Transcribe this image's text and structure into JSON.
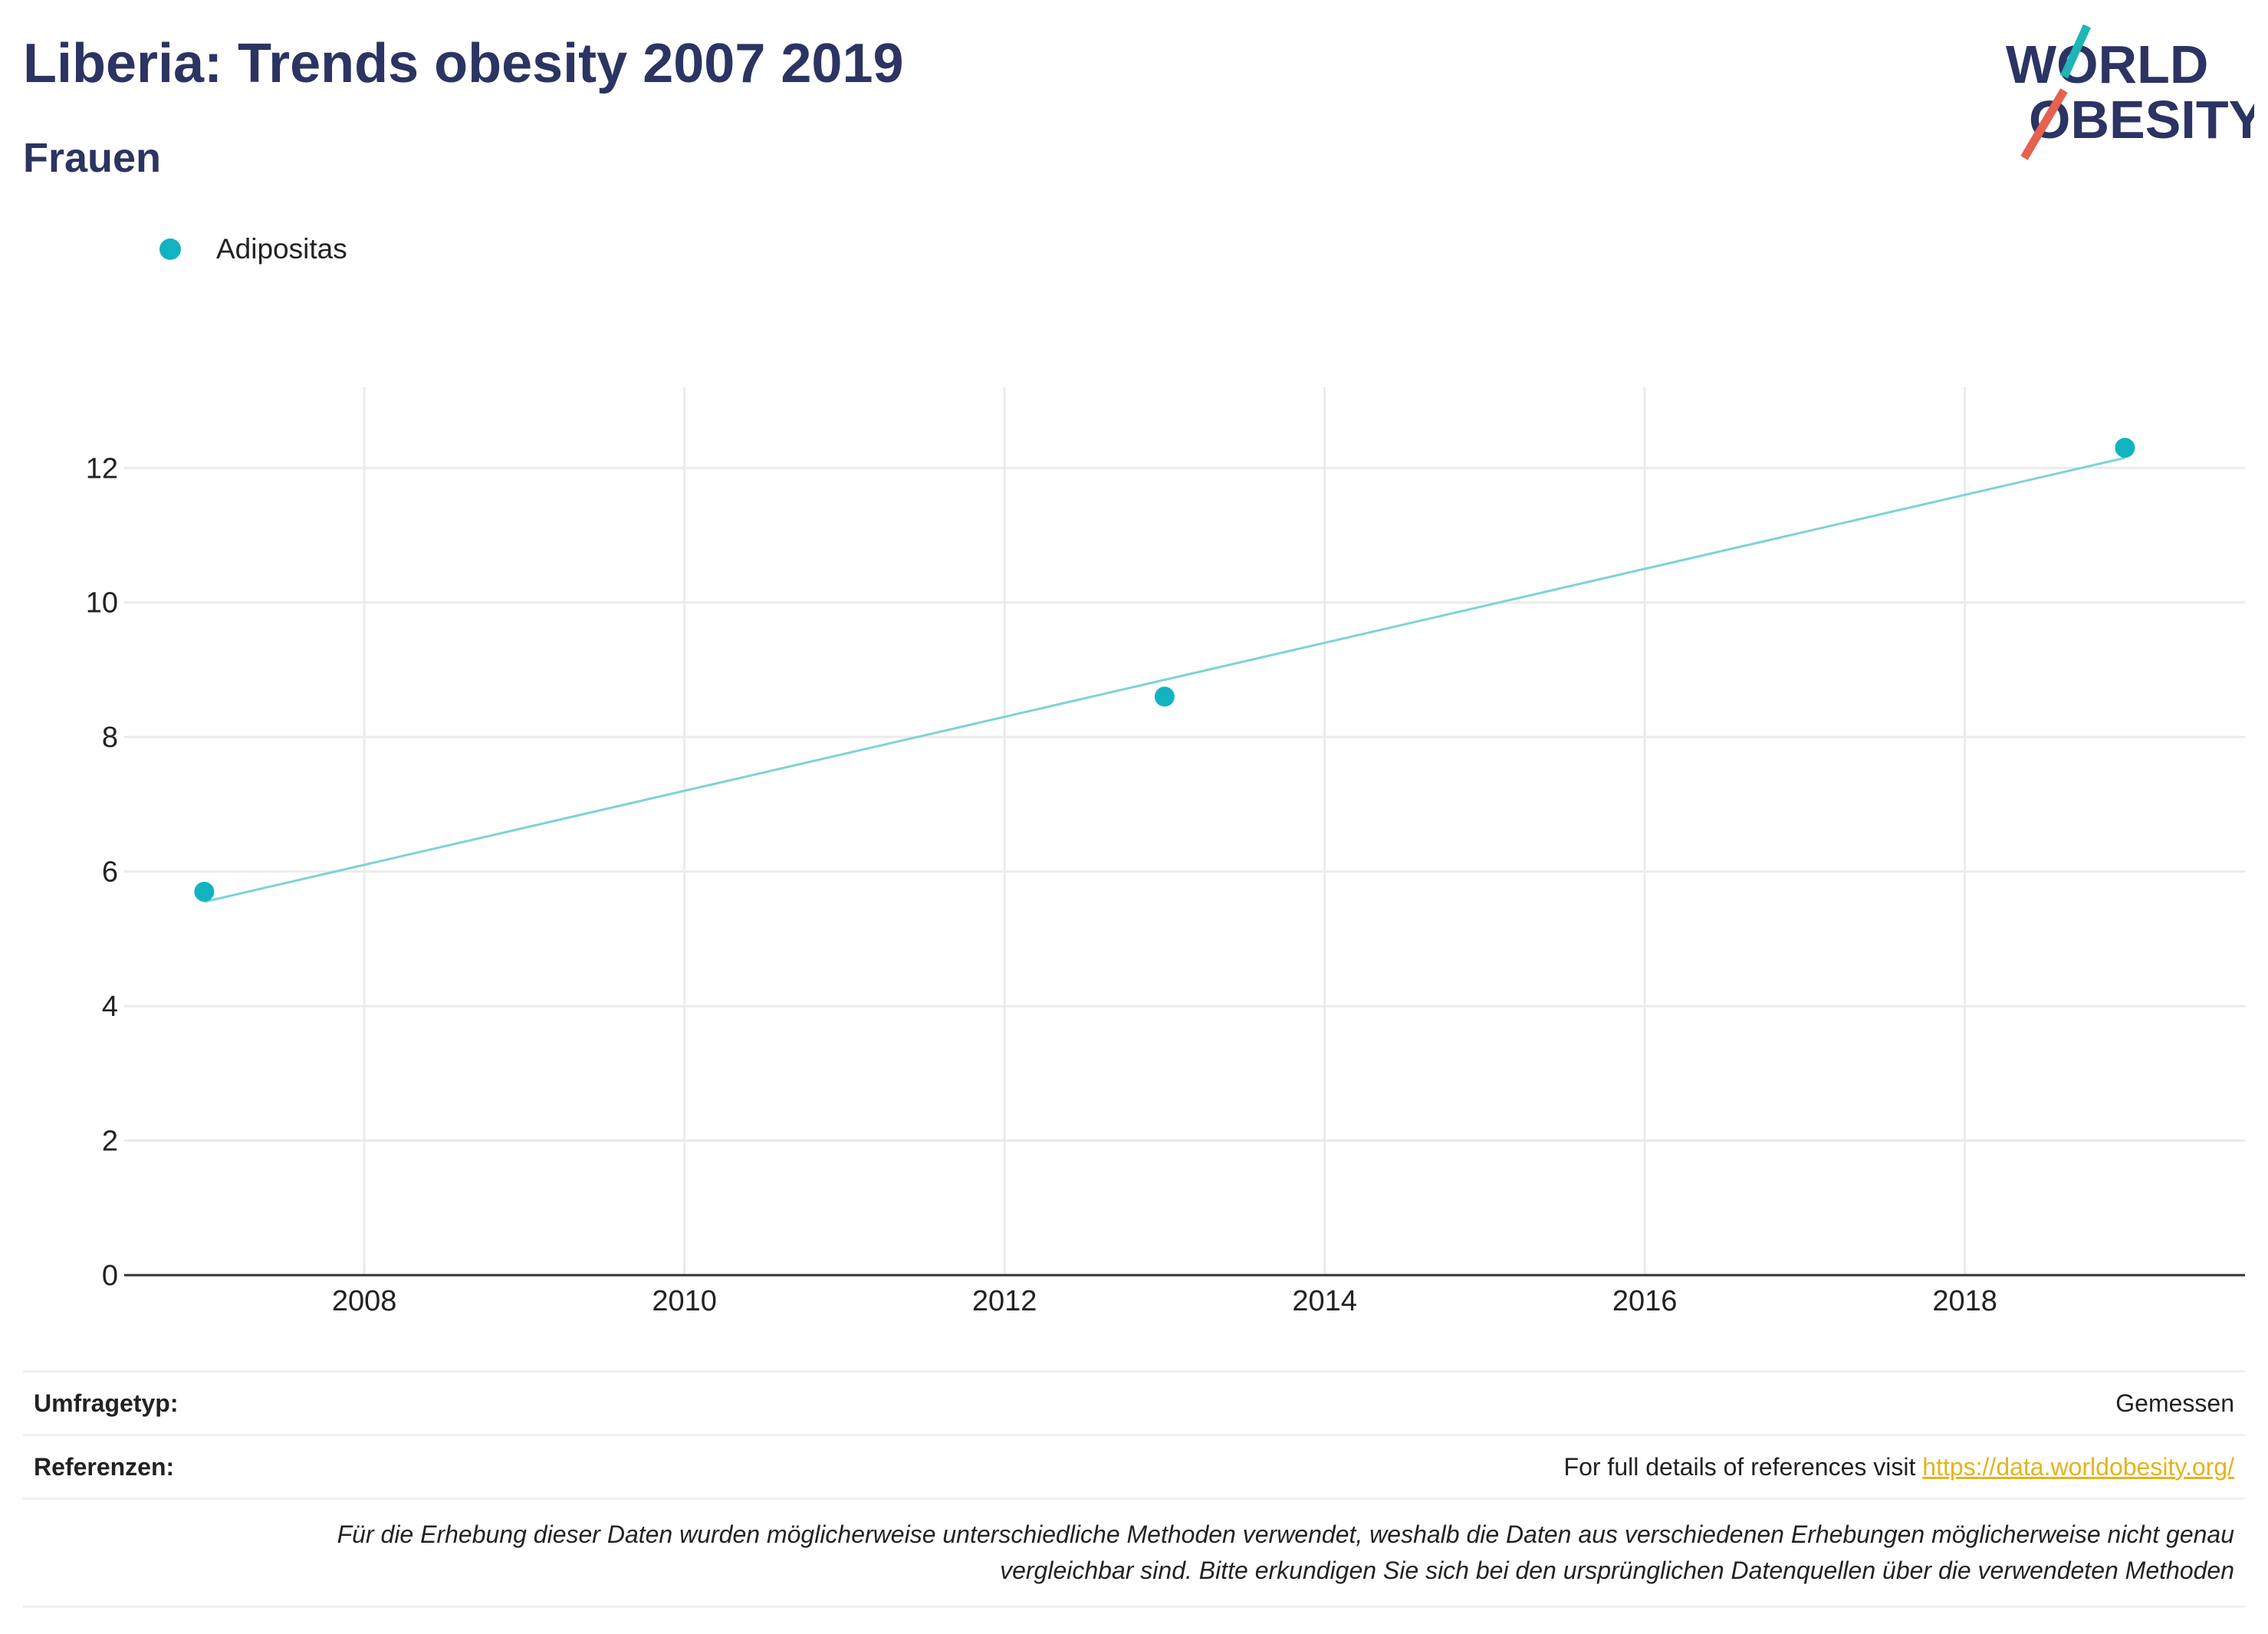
{
  "title": "Liberia: Trends obesity 2007 2019",
  "subtitle": "Frauen",
  "logo": {
    "line1": "WORLD",
    "line2": "OBESITY",
    "accent_teal": "#1fb5b7",
    "accent_red": "#e5624e",
    "text_color": "#2b3462"
  },
  "legend": {
    "label": "Adipositas",
    "color": "#12b3c0"
  },
  "chart_data": {
    "type": "scatter",
    "title": "Liberia: Trends obesity 2007 2019",
    "subtitle": "Frauen",
    "xlabel": "",
    "ylabel": "",
    "xlim": [
      2006.5,
      2019.75
    ],
    "ylim": [
      0,
      13.2
    ],
    "x_ticks": [
      2008,
      2010,
      2012,
      2014,
      2016,
      2018
    ],
    "y_ticks": [
      0,
      2,
      4,
      6,
      8,
      10,
      12
    ],
    "grid": true,
    "legend_position": "top-left",
    "series": [
      {
        "name": "Adipositas",
        "color": "#12b3c0",
        "x": [
          2007,
          2013,
          2019
        ],
        "y": [
          5.7,
          8.6,
          12.3
        ]
      }
    ],
    "trendline": {
      "color": "#7dd3d8",
      "x": [
        2007,
        2019
      ],
      "y": [
        5.55,
        12.15
      ]
    }
  },
  "footer": {
    "survey_type_label": "Umfragetyp:",
    "survey_type_value": "Gemessen",
    "references_label": "Referenzen:",
    "references_text": "For full details of references visit ",
    "references_link": "https://data.worldobesity.org/",
    "note_line1": "Für die Erhebung dieser Daten wurden möglicherweise unterschiedliche Methoden verwendet, weshalb die Daten aus verschiedenen Erhebungen möglicherweise nicht genau",
    "note_line2": "vergleichbar sind. Bitte erkundigen Sie sich bei den ursprünglichen Datenquellen über die verwendeten Methoden"
  }
}
